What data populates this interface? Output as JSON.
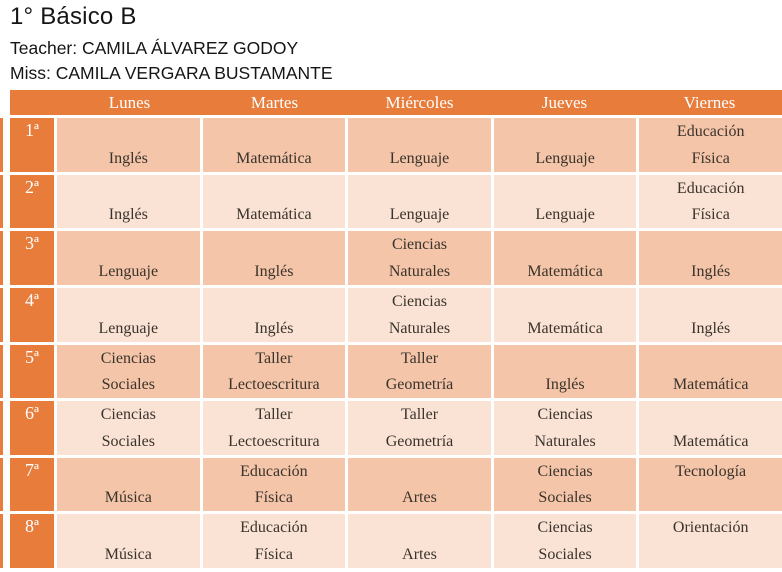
{
  "header": {
    "title": "1° Básico B",
    "teacher": "Teacher: CAMILA ÁLVAREZ GODOY",
    "miss": "Miss: CAMILA VERGARA BUSTAMANTE"
  },
  "colors": {
    "orange": "#E77C3B",
    "row_band_dark": "#F4C5A8",
    "row_band_light": "#FAE3D5",
    "subject_text": "#3A332C",
    "header_text": "#FFFFFF",
    "page_text": "#151515",
    "background": "#FFFFFF"
  },
  "table": {
    "days": [
      "Lunes",
      "Martes",
      "Miércoles",
      "Jueves",
      "Viernes"
    ],
    "rows": [
      {
        "period": "1ª",
        "cells": [
          [
            "",
            "Inglés"
          ],
          [
            "",
            "Matemática"
          ],
          [
            "",
            "Lenguaje"
          ],
          [
            "",
            "Lenguaje"
          ],
          [
            "Educación",
            "Física"
          ]
        ]
      },
      {
        "period": "2ª",
        "cells": [
          [
            "",
            "Inglés"
          ],
          [
            "",
            "Matemática"
          ],
          [
            "",
            "Lenguaje"
          ],
          [
            "",
            "Lenguaje"
          ],
          [
            "Educación",
            "Física"
          ]
        ]
      },
      {
        "period": "3ª",
        "cells": [
          [
            "",
            "Lenguaje"
          ],
          [
            "",
            "Inglés"
          ],
          [
            "Ciencias",
            "Naturales"
          ],
          [
            "",
            "Matemática"
          ],
          [
            "",
            "Inglés"
          ]
        ]
      },
      {
        "period": "4ª",
        "cells": [
          [
            "",
            "Lenguaje"
          ],
          [
            "",
            "Inglés"
          ],
          [
            "Ciencias",
            "Naturales"
          ],
          [
            "",
            "Matemática"
          ],
          [
            "",
            "Inglés"
          ]
        ]
      },
      {
        "period": "5ª",
        "cells": [
          [
            "Ciencias",
            "Sociales"
          ],
          [
            "Taller",
            "Lectoescritura"
          ],
          [
            "Taller",
            "Geometría"
          ],
          [
            "",
            "Inglés"
          ],
          [
            "",
            "Matemática"
          ]
        ]
      },
      {
        "period": "6ª",
        "cells": [
          [
            "Ciencias",
            "Sociales"
          ],
          [
            "Taller",
            "Lectoescritura"
          ],
          [
            "Taller",
            "Geometría"
          ],
          [
            "Ciencias",
            "Naturales"
          ],
          [
            "",
            "Matemática"
          ]
        ]
      },
      {
        "period": "7ª",
        "cells": [
          [
            "",
            "Música"
          ],
          [
            "Educación",
            "Física"
          ],
          [
            "",
            "Artes"
          ],
          [
            "Ciencias",
            "Sociales"
          ],
          [
            "Tecnología",
            ""
          ]
        ]
      },
      {
        "period": "8ª",
        "cells": [
          [
            "",
            "Música"
          ],
          [
            "Educación",
            "Física"
          ],
          [
            "",
            "Artes"
          ],
          [
            "Ciencias",
            "Sociales"
          ],
          [
            "Orientación",
            ""
          ]
        ]
      }
    ]
  }
}
